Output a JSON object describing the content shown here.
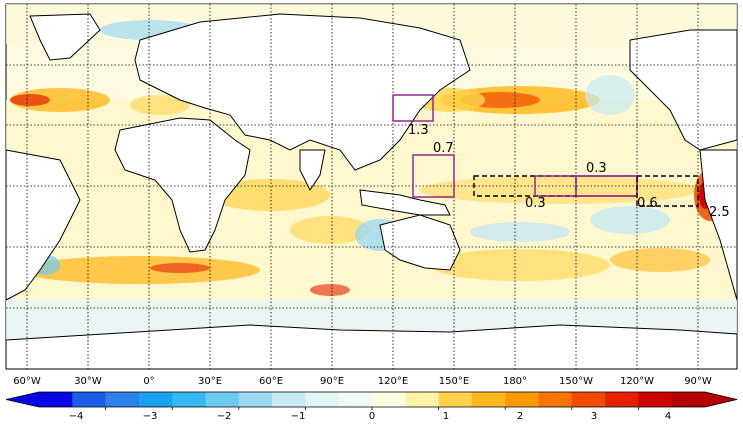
{
  "map": {
    "lon_labels": [
      "60°W",
      "30°W",
      "0°",
      "30°E",
      "60°E",
      "90°E",
      "120°E",
      "150°E",
      "180°",
      "150°W",
      "120°W",
      "90°W"
    ],
    "projection": "equirectangular, Pacific-centred ocean anomaly map",
    "gridlines": "dotted black graticule every 30°",
    "boxes": [
      {
        "id": "kuroshio",
        "label": "1.3",
        "style": "solid",
        "color": "#8b1a8b"
      },
      {
        "id": "warm-pool",
        "label": "0.7",
        "style": "solid",
        "color": "#8b1a8b"
      },
      {
        "id": "nino4",
        "label": "0.3",
        "style": "dashed",
        "color": "#000000"
      },
      {
        "id": "nino34",
        "label": "0.3",
        "style": "solid",
        "color": "#8b1a8b"
      },
      {
        "id": "nino3",
        "label": "0.6",
        "style": "solid",
        "color": "#8b1a8b"
      },
      {
        "id": "nino12",
        "label": "2.5",
        "style": "dashed",
        "color": "#000000"
      }
    ]
  },
  "colorbar": {
    "ticks": [
      "−4",
      "−3",
      "−2",
      "−1",
      "0",
      "1",
      "2",
      "3",
      "4"
    ],
    "min": -5,
    "max": 5,
    "extend": "both",
    "colors": [
      "#0505e6",
      "#1c5ce8",
      "#2a82ea",
      "#1aa2ee",
      "#33b8f2",
      "#6ccaf2",
      "#9dd8f2",
      "#c7e9f4",
      "#e2f5f6",
      "#f1fbf6",
      "#fffde2",
      "#fff3a8",
      "#ffd34a",
      "#ffb81f",
      "#ff9a00",
      "#f77400",
      "#f04b00",
      "#e42000",
      "#cc0000",
      "#b40000"
    ]
  }
}
